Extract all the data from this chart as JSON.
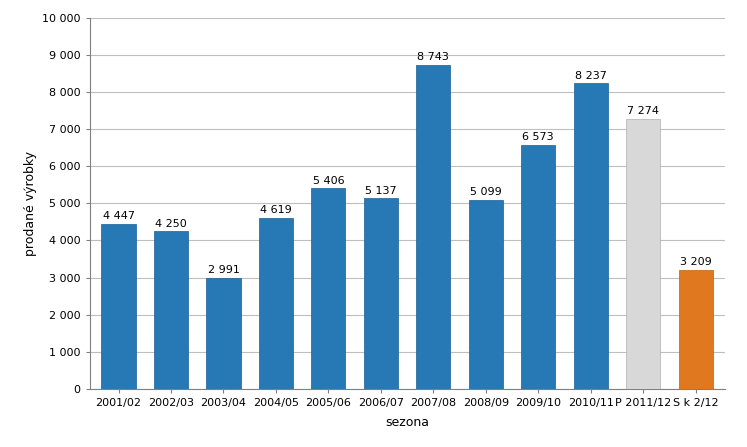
{
  "categories": [
    "2001/02",
    "2002/03",
    "2003/04",
    "2004/05",
    "2005/06",
    "2006/07",
    "2007/08",
    "2008/09",
    "2009/10",
    "2010/11",
    "P 2011/12",
    "S k 2/12"
  ],
  "values": [
    4447,
    4250,
    2991,
    4619,
    5406,
    5137,
    8743,
    5099,
    6573,
    8237,
    7274,
    3209
  ],
  "bar_colors": [
    "#2779b5",
    "#2779b5",
    "#2779b5",
    "#2779b5",
    "#2779b5",
    "#2779b5",
    "#2779b5",
    "#2779b5",
    "#2779b5",
    "#2779b5",
    "#d8d8d8",
    "#e07820"
  ],
  "bar_edgecolors": [
    "#1a5f96",
    "#1a5f96",
    "#1a5f96",
    "#1a5f96",
    "#1a5f96",
    "#1a5f96",
    "#1a5f96",
    "#1a5f96",
    "#1a5f96",
    "#1a5f96",
    "#b0b0b0",
    "#c06010"
  ],
  "ylabel": "prodané výrobky",
  "xlabel": "sezona",
  "ylim": [
    0,
    10000
  ],
  "yticks": [
    0,
    1000,
    2000,
    3000,
    4000,
    5000,
    6000,
    7000,
    8000,
    9000,
    10000
  ],
  "label_fontsize": 8,
  "axis_label_fontsize": 9,
  "tick_fontsize": 8,
  "background_color": "#ffffff",
  "grid_color": "#bebebe",
  "spine_color": "#808080"
}
